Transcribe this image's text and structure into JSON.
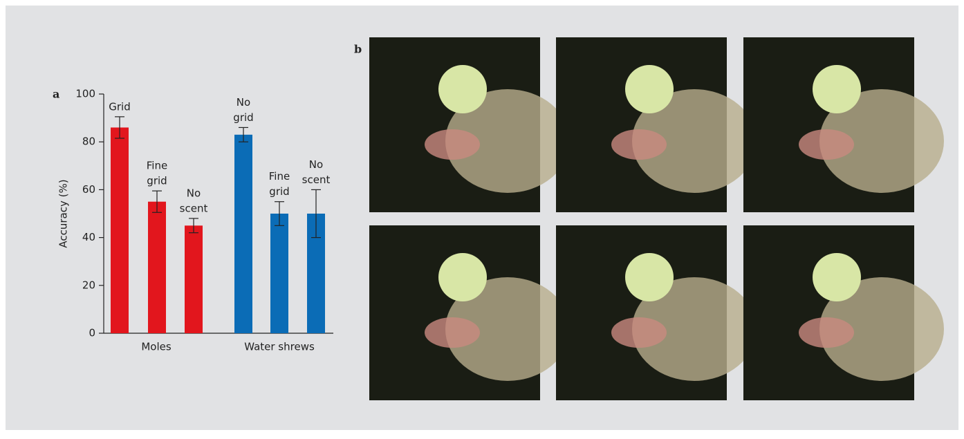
{
  "panel_a_label": "a",
  "panel_b_label": "b",
  "chart_data": {
    "type": "bar",
    "ylabel": "Accuracy (%)",
    "ylim": [
      0,
      100
    ],
    "yticks": [
      0,
      20,
      40,
      60,
      80,
      100
    ],
    "series": [
      {
        "name": "Moles",
        "color": "#e2161d",
        "values": [
          86,
          55,
          45
        ],
        "errors": [
          4.5,
          4.5,
          3
        ],
        "bar_labels": [
          [
            "Grid"
          ],
          [
            "Fine",
            "grid"
          ],
          [
            "No",
            "scent"
          ]
        ]
      },
      {
        "name": "Water shrews",
        "color": "#0b6cb6",
        "values": [
          83,
          50,
          50
        ],
        "errors": [
          3,
          5,
          10
        ],
        "bar_labels": [
          [
            "No",
            "grid"
          ],
          [
            "Fine",
            "grid"
          ],
          [
            "No",
            "scent"
          ]
        ]
      }
    ]
  }
}
